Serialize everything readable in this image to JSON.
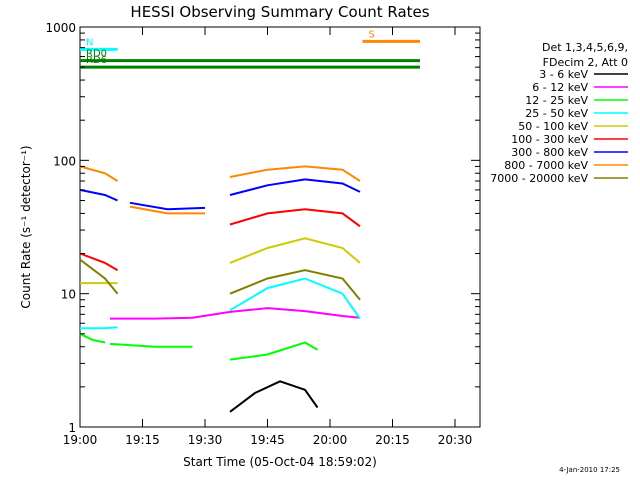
{
  "chart_data": {
    "type": "line",
    "title": "HESSI Observing Summary Count Rates",
    "xlabel": "Start Time (05-Oct-04 18:59:02)",
    "ylabel": "Count Rate (s⁻¹ detector⁻¹)",
    "yscale": "log",
    "ylim": [
      1,
      1000
    ],
    "xlim": [
      "19:00",
      "20:36"
    ],
    "x_tick_labels": [
      "19:00",
      "19:15",
      "19:30",
      "19:45",
      "20:00",
      "20:15",
      "20:30"
    ],
    "y_tick_labels": [
      "1",
      "10",
      "100",
      "1000"
    ],
    "legend_position": "right",
    "legend_header": [
      "Det 1,3,4,5,6,9,",
      "FDecim 2, Att 0"
    ],
    "timestamp": "4-Jan-2010 17:25",
    "series": [
      {
        "name": "3 - 6 keV",
        "color": "#000000",
        "segments": [
          {
            "x": [
              19.6,
              19.7,
              19.8,
              19.9,
              19.95
            ],
            "y": [
              1.3,
              1.8,
              2.2,
              1.9,
              1.4
            ]
          }
        ]
      },
      {
        "name": "6 - 12 keV",
        "color": "#ff00ff",
        "segments": [
          {
            "x": [
              19.12,
              19.3,
              19.45,
              19.6,
              19.75,
              19.9,
              20.05,
              20.12
            ],
            "y": [
              6.5,
              6.5,
              6.6,
              7.3,
              7.8,
              7.4,
              6.8,
              6.6
            ]
          }
        ]
      },
      {
        "name": "12 - 25 keV",
        "color": "#00ff00",
        "segments": [
          {
            "x": [
              19.0,
              19.05,
              19.1
            ],
            "y": [
              5.0,
              4.5,
              4.3
            ]
          },
          {
            "x": [
              19.12,
              19.3,
              19.45
            ],
            "y": [
              4.2,
              4.0,
              4.0
            ]
          },
          {
            "x": [
              19.6,
              19.75,
              19.9,
              19.95
            ],
            "y": [
              3.2,
              3.5,
              4.3,
              3.8
            ]
          }
        ]
      },
      {
        "name": "25 - 50 keV",
        "color": "#00ffff",
        "segments": [
          {
            "x": [
              19.0,
              19.1,
              19.15
            ],
            "y": [
              5.5,
              5.5,
              5.6
            ]
          },
          {
            "x": [
              19.6,
              19.75,
              19.9,
              20.05,
              20.12
            ],
            "y": [
              7.5,
              11,
              13,
              10,
              6.5
            ]
          }
        ]
      },
      {
        "name": "50 - 100 keV",
        "color": "#cccc00",
        "segments": [
          {
            "x": [
              19.0,
              19.1,
              19.15
            ],
            "y": [
              12,
              12,
              12
            ]
          },
          {
            "x": [
              19.6,
              19.75,
              19.9,
              20.05,
              20.12
            ],
            "y": [
              17,
              22,
              26,
              22,
              17
            ]
          }
        ]
      },
      {
        "name": "100 - 300 keV",
        "color": "#ff0000",
        "segments": [
          {
            "x": [
              19.0,
              19.1,
              19.15
            ],
            "y": [
              20,
              17,
              15
            ]
          },
          {
            "x": [
              19.6,
              19.75,
              19.9,
              20.05,
              20.12
            ],
            "y": [
              33,
              40,
              43,
              40,
              32
            ]
          }
        ]
      },
      {
        "name": "300 - 800 keV",
        "color": "#0000ff",
        "segments": [
          {
            "x": [
              19.0,
              19.1,
              19.15
            ],
            "y": [
              60,
              55,
              50
            ]
          },
          {
            "x": [
              19.2,
              19.35,
              19.5
            ],
            "y": [
              48,
              43,
              44
            ]
          },
          {
            "x": [
              19.6,
              19.75,
              19.9,
              20.05,
              20.12
            ],
            "y": [
              55,
              65,
              72,
              67,
              58
            ]
          }
        ]
      },
      {
        "name": "800 - 7000 keV",
        "color": "#ff8800",
        "segments": [
          {
            "x": [
              19.0,
              19.1,
              19.15
            ],
            "y": [
              90,
              80,
              70
            ]
          },
          {
            "x": [
              19.2,
              19.35,
              19.5
            ],
            "y": [
              45,
              40,
              40
            ]
          },
          {
            "x": [
              19.6,
              19.75,
              19.9,
              20.05,
              20.12
            ],
            "y": [
              75,
              85,
              90,
              85,
              70
            ]
          }
        ]
      },
      {
        "name": "7000 - 20000 keV",
        "color": "#808000",
        "segments": [
          {
            "x": [
              19.0,
              19.1,
              19.15
            ],
            "y": [
              18,
              13,
              10
            ]
          },
          {
            "x": [
              19.6,
              19.75,
              19.9,
              20.05,
              20.12
            ],
            "y": [
              10,
              13,
              15,
              13,
              9
            ]
          }
        ]
      }
    ],
    "flag_bars": [
      {
        "label": "N",
        "color": "#00ffff",
        "y": 680,
        "start": 19.0,
        "end": 19.15
      },
      {
        "label": "RD0",
        "color": "#008000",
        "y": 560,
        "start": 19.0,
        "end": 20.36
      },
      {
        "label": "RD6",
        "color": "#008000",
        "y": 500,
        "start": 19.0,
        "end": 20.36
      },
      {
        "label": "S",
        "color": "#ff8800",
        "y": 780,
        "start": 20.13,
        "end": 20.36
      }
    ]
  }
}
